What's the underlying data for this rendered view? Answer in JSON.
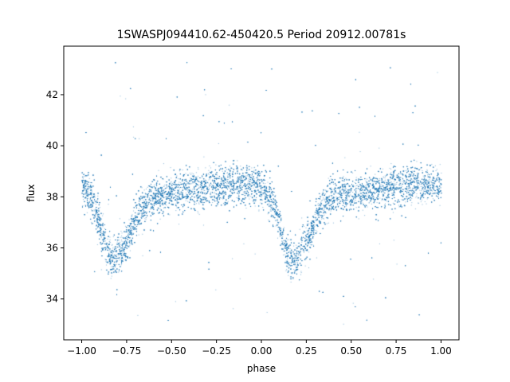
{
  "chart_data": {
    "type": "scatter",
    "title": "1SWASPJ094410.62-450420.5 Period 20912.00781s",
    "xlabel": "phase",
    "ylabel": "flux",
    "xlim": [
      -1.1,
      1.1
    ],
    "ylim": [
      32.4,
      43.9
    ],
    "xticks": [
      -1.0,
      -0.75,
      -0.5,
      -0.25,
      0.0,
      0.25,
      0.5,
      0.75,
      1.0
    ],
    "xtick_labels": [
      "−1.00",
      "−0.75",
      "−0.50",
      "−0.25",
      "0.00",
      "0.25",
      "0.50",
      "0.75",
      "1.00"
    ],
    "yticks": [
      34,
      36,
      38,
      40,
      42
    ],
    "ytick_labels": [
      "34",
      "36",
      "38",
      "40",
      "42"
    ],
    "grid": false,
    "marker_color": "#1f77b4",
    "phase_range": [
      -1.0,
      1.0
    ],
    "baseline_flux": 38.3,
    "minima": [
      {
        "phase": -0.83,
        "flux": 35.6
      },
      {
        "phase": 0.17,
        "flux": 35.5
      }
    ]
  }
}
